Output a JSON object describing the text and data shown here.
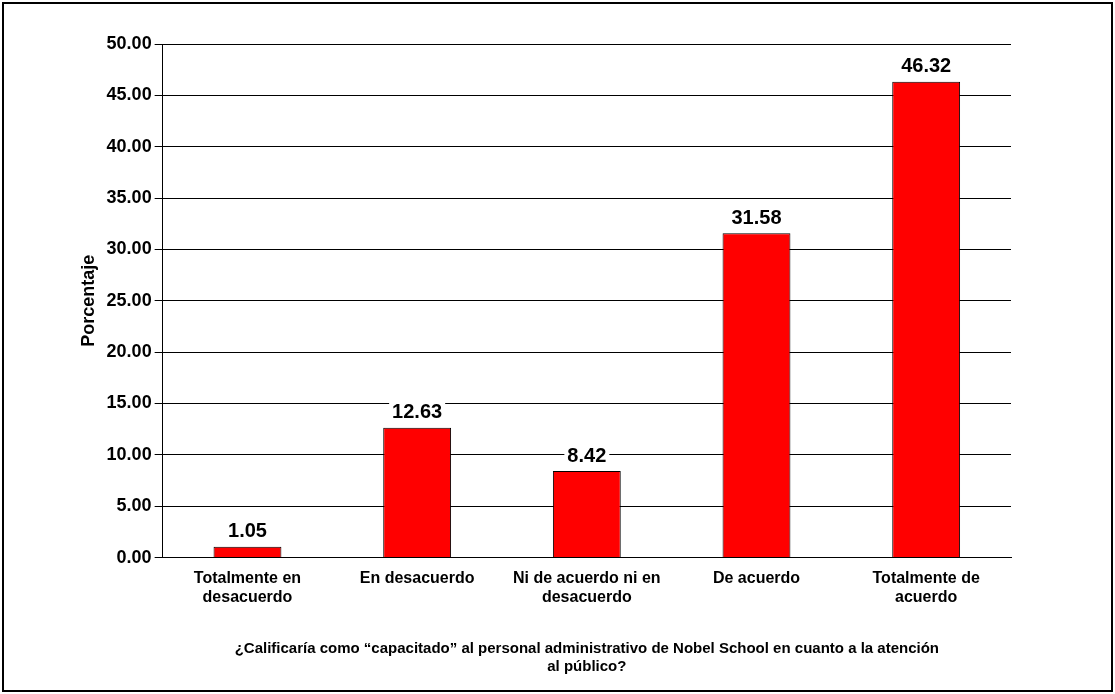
{
  "chart_data": {
    "type": "bar",
    "xlabel": "¿Calificaría como “capacitado” al personal administrativo de Nobel School en cuanto a la atención al público?",
    "ylabel": "Porcentaje",
    "categories": [
      "Totalmente en desacuerdo",
      "En desacuerdo",
      "Ni de acuerdo ni en desacuerdo",
      "De acuerdo",
      "Totalmente de acuerdo"
    ],
    "values": [
      1.05,
      12.63,
      8.42,
      31.58,
      46.32
    ],
    "color": "#ff0000",
    "ylim": [
      0,
      50
    ],
    "yticks": [
      {
        "value": 0,
        "label": "0.00"
      },
      {
        "value": 5,
        "label": "5.00"
      },
      {
        "value": 10,
        "label": "10.00"
      },
      {
        "value": 15,
        "label": "15.00"
      },
      {
        "value": 20,
        "label": "20.00"
      },
      {
        "value": 25,
        "label": "25.00"
      },
      {
        "value": 30,
        "label": "30.00"
      },
      {
        "value": 35,
        "label": "35.00"
      },
      {
        "value": 40,
        "label": "40.00"
      },
      {
        "value": 45,
        "label": "45.00"
      },
      {
        "value": 50,
        "label": "50.00"
      }
    ],
    "grid": "y",
    "data_labels": true,
    "legend": false
  }
}
